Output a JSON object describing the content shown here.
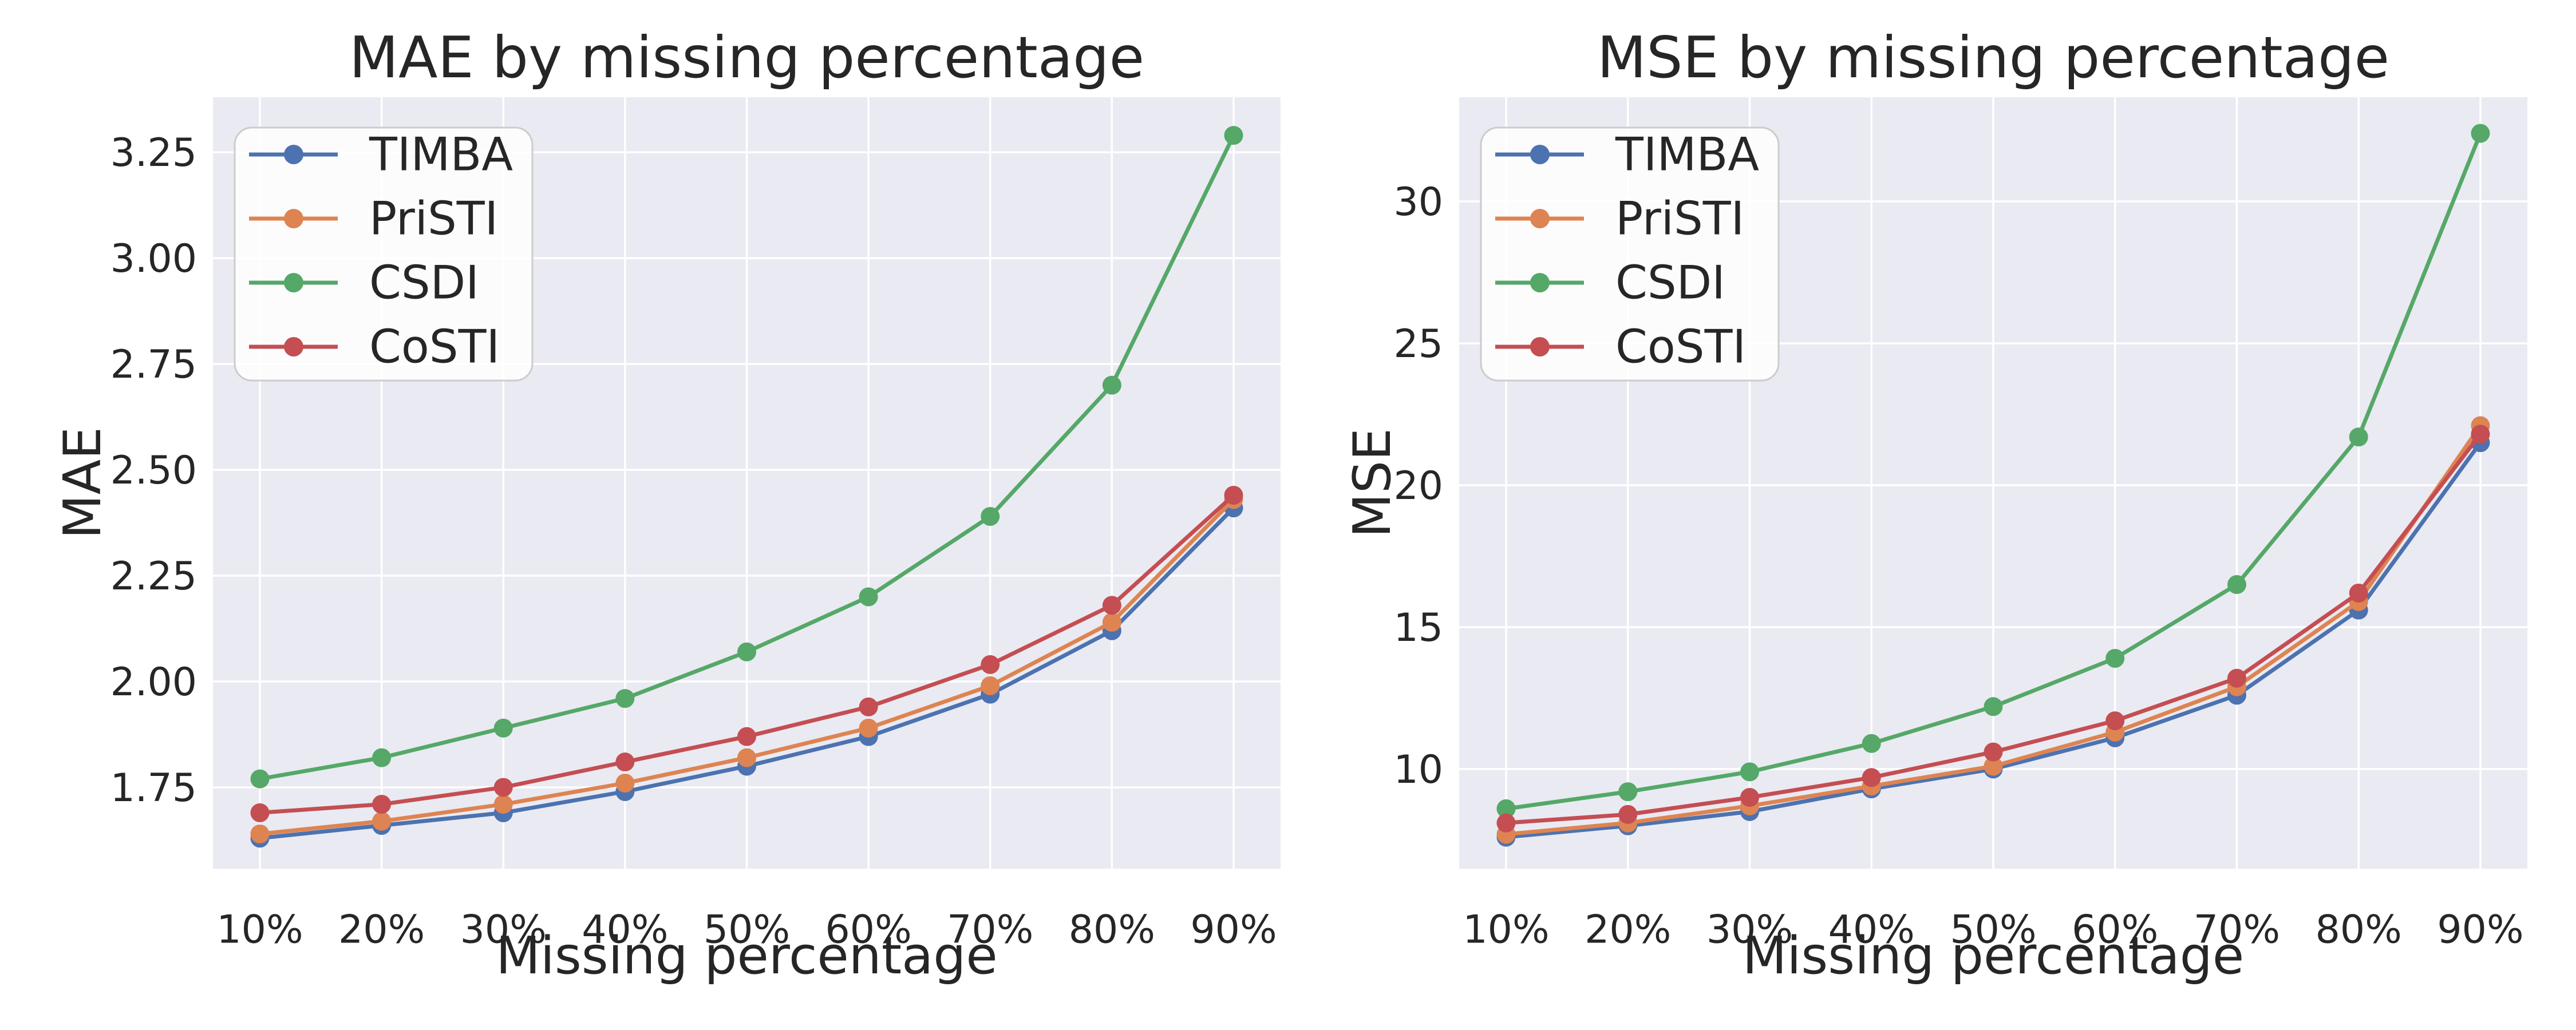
{
  "figure": {
    "background": "#FFFFFF",
    "axes_background": "#EAEAF2",
    "grid_color": "#FFFFFF",
    "text_color": "#262626",
    "legend_border_color": "#CCCCCC",
    "legend_background": "rgba(255,255,255,0.85)"
  },
  "chart_data": [
    {
      "id": "mae",
      "type": "line",
      "title": "MAE by missing percentage",
      "xlabel": "Missing percentage",
      "ylabel": "MAE",
      "grid": true,
      "legend_position": "upper left",
      "categories": [
        "10%",
        "20%",
        "30%",
        "40%",
        "50%",
        "60%",
        "70%",
        "80%",
        "90%"
      ],
      "yticks": [
        "1.75",
        "2.00",
        "2.25",
        "2.50",
        "2.75",
        "3.00",
        "3.25"
      ],
      "ylim": [
        1.558,
        3.38
      ],
      "series": [
        {
          "name": "TIMBA",
          "color": "#4C72B0",
          "values": [
            1.63,
            1.66,
            1.69,
            1.74,
            1.8,
            1.87,
            1.97,
            2.12,
            2.41
          ]
        },
        {
          "name": "PriSTI",
          "color": "#DD8452",
          "values": [
            1.64,
            1.67,
            1.71,
            1.76,
            1.82,
            1.89,
            1.99,
            2.14,
            2.43
          ]
        },
        {
          "name": "CSDI",
          "color": "#55A868",
          "values": [
            1.77,
            1.82,
            1.89,
            1.96,
            2.07,
            2.2,
            2.39,
            2.7,
            3.29
          ]
        },
        {
          "name": "CoSTI",
          "color": "#C44E52",
          "values": [
            1.69,
            1.71,
            1.75,
            1.81,
            1.87,
            1.94,
            2.04,
            2.18,
            2.44
          ]
        }
      ]
    },
    {
      "id": "mse",
      "type": "line",
      "title": "MSE by missing percentage",
      "xlabel": "Missing percentage",
      "ylabel": "MSE",
      "grid": true,
      "legend_position": "upper left",
      "categories": [
        "10%",
        "20%",
        "30%",
        "40%",
        "50%",
        "60%",
        "70%",
        "80%",
        "90%"
      ],
      "yticks": [
        "10",
        "15",
        "20",
        "25",
        "30"
      ],
      "ylim": [
        6.49,
        33.67
      ],
      "series": [
        {
          "name": "TIMBA",
          "color": "#4C72B0",
          "values": [
            7.6,
            8.0,
            8.5,
            9.3,
            10.0,
            11.1,
            12.6,
            15.6,
            21.5
          ]
        },
        {
          "name": "PriSTI",
          "color": "#DD8452",
          "values": [
            7.7,
            8.1,
            8.7,
            9.4,
            10.1,
            11.3,
            12.9,
            15.9,
            22.1
          ]
        },
        {
          "name": "CSDI",
          "color": "#55A868",
          "values": [
            8.6,
            9.2,
            9.9,
            10.9,
            12.2,
            13.9,
            16.5,
            21.7,
            32.4
          ]
        },
        {
          "name": "CoSTI",
          "color": "#C44E52",
          "values": [
            8.1,
            8.4,
            9.0,
            9.7,
            10.6,
            11.7,
            13.2,
            16.2,
            21.8
          ]
        }
      ]
    }
  ]
}
